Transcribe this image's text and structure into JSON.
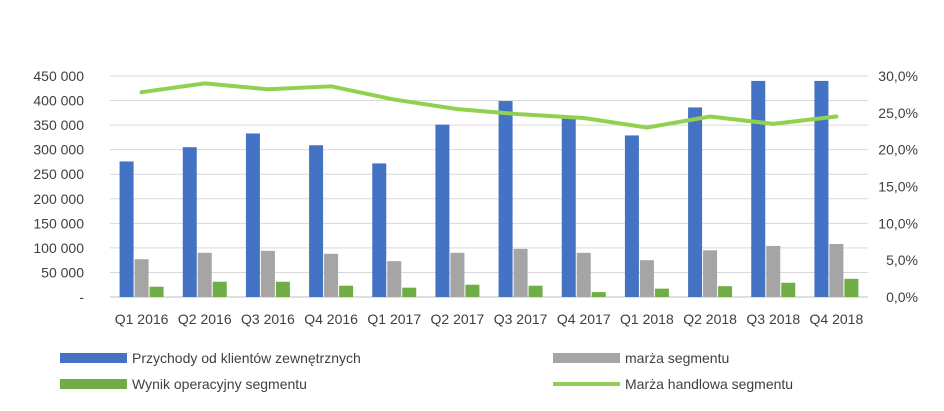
{
  "chart_data": {
    "type": "bar",
    "categories": [
      "Q1 2016",
      "Q2 2016",
      "Q3 2016",
      "Q4 2016",
      "Q1 2017",
      "Q2 2017",
      "Q3 2017",
      "Q4 2017",
      "Q1 2018",
      "Q2 2018",
      "Q3 2018",
      "Q4 2018"
    ],
    "series": [
      {
        "name": "Przychody od klientów zewnętrznych",
        "type": "bar",
        "axis": "left",
        "color": "#4472C4",
        "values": [
          276000,
          305000,
          333000,
          309000,
          272000,
          351000,
          399000,
          364000,
          329000,
          386000,
          440000,
          440000
        ]
      },
      {
        "name": "marża segmentu",
        "type": "bar",
        "axis": "left",
        "color": "#A5A5A5",
        "values": [
          77000,
          90000,
          94000,
          88000,
          73000,
          90000,
          98000,
          90000,
          75000,
          95000,
          104000,
          108000
        ]
      },
      {
        "name": "Wynik operacyjny segmentu",
        "type": "bar",
        "axis": "left",
        "color": "#70AD47",
        "values": [
          21000,
          31000,
          31000,
          23000,
          19000,
          25000,
          23000,
          10000,
          17000,
          22000,
          29000,
          37000
        ]
      },
      {
        "name": "Marża handlowa segmentu",
        "type": "line",
        "axis": "right",
        "color": "#92D050",
        "values": [
          27.8,
          29.0,
          28.2,
          28.6,
          26.8,
          25.5,
          24.8,
          24.3,
          23.0,
          24.5,
          23.5,
          24.5
        ]
      }
    ],
    "y_left": {
      "range": [
        0,
        450000
      ],
      "ticks": [
        "-",
        "50 000",
        "100 000",
        "150 000",
        "200 000",
        "250 000",
        "300 000",
        "350 000",
        "400 000",
        "450 000"
      ]
    },
    "y_right": {
      "range": [
        0,
        30
      ],
      "unit": "%",
      "ticks": [
        "0,0%",
        "5,0%",
        "10,0%",
        "15,0%",
        "20,0%",
        "25,0%",
        "30,0%"
      ]
    },
    "grid": true,
    "legend": "bottom"
  }
}
